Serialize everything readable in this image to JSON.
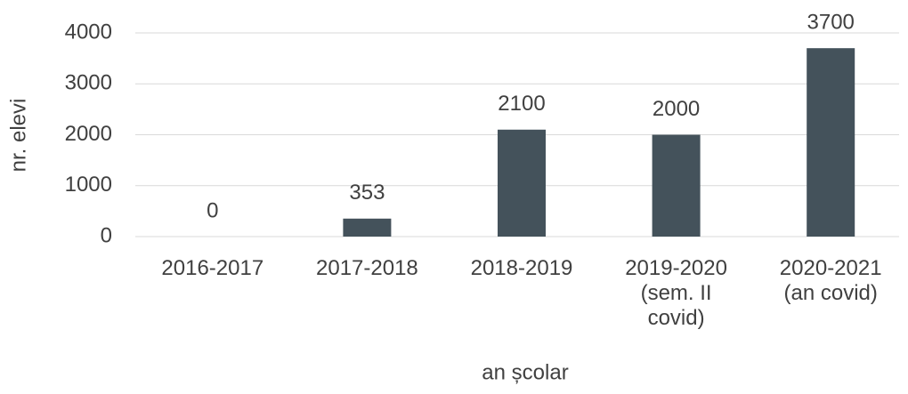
{
  "chart_data": {
    "type": "bar",
    "categories": [
      "2016-2017",
      "2017-2018",
      "2018-2019",
      "2019-2020 (sem. II covid)",
      "2020-2021 (an covid)"
    ],
    "values": [
      0,
      353,
      2100,
      2000,
      3700
    ],
    "color": "#44525b",
    "x_label": "an școlar",
    "y_label": "nr. elevi",
    "ylim": [
      0,
      4000
    ],
    "yticks": [
      0,
      1000,
      2000,
      3000,
      4000
    ],
    "grid": true
  }
}
